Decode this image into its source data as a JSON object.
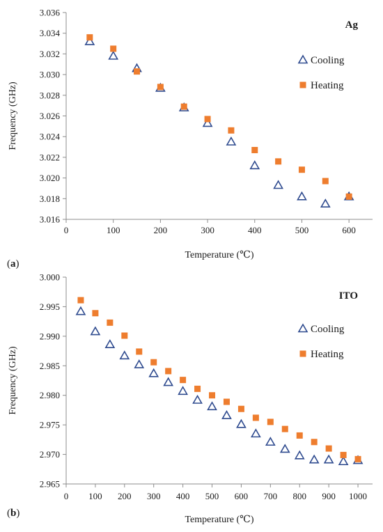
{
  "colors": {
    "cooling": "#2f4b8f",
    "heating": "#ee7d2e",
    "axis": "#8c8c8c",
    "text": "#1a1a1a"
  },
  "chart_data": [
    {
      "type": "scatter",
      "panel_label": "a",
      "annotation": "Ag",
      "xlabel": "Temperature (℃)",
      "ylabel": "Frequency (GHz)",
      "xlim": [
        0,
        650
      ],
      "ylim": [
        3.016,
        3.036
      ],
      "xticks": [
        "0",
        "100",
        "200",
        "300",
        "400",
        "500",
        "600"
      ],
      "yticks": [
        "3.016",
        "3.018",
        "3.020",
        "3.022",
        "3.024",
        "3.026",
        "3.028",
        "3.030",
        "3.032",
        "3.034",
        "3.036"
      ],
      "grid": false,
      "legend_position": "right",
      "series": [
        {
          "name": "Cooling",
          "marker": "triangle-open",
          "x": [
            50,
            100,
            150,
            200,
            250,
            300,
            350,
            400,
            450,
            500,
            550,
            600
          ],
          "y": [
            3.0332,
            3.0318,
            3.0306,
            3.0287,
            3.0268,
            3.0253,
            3.0235,
            3.0212,
            3.0193,
            3.0182,
            3.0175,
            3.0182
          ]
        },
        {
          "name": "Heating",
          "marker": "square",
          "x": [
            50,
            100,
            150,
            200,
            250,
            300,
            350,
            400,
            450,
            500,
            550,
            600
          ],
          "y": [
            3.0336,
            3.0325,
            3.0303,
            3.0288,
            3.0269,
            3.0257,
            3.0246,
            3.0227,
            3.0216,
            3.0208,
            3.0197,
            3.0182
          ]
        }
      ]
    },
    {
      "type": "scatter",
      "panel_label": "b",
      "annotation": "ITO",
      "xlabel": "Temperature (℃)",
      "ylabel": "Frequency (GHz)",
      "xlim": [
        0,
        1050
      ],
      "ylim": [
        2.965,
        3.0
      ],
      "xticks": [
        "0",
        "100",
        "200",
        "300",
        "400",
        "500",
        "600",
        "700",
        "800",
        "900",
        "1000"
      ],
      "yticks": [
        "2.965",
        "2.970",
        "2.975",
        "2.980",
        "2.985",
        "2.990",
        "2.995",
        "3.000"
      ],
      "grid": false,
      "legend_position": "right",
      "series": [
        {
          "name": "Cooling",
          "marker": "triangle-open",
          "x": [
            50,
            100,
            150,
            200,
            250,
            300,
            350,
            400,
            450,
            500,
            550,
            600,
            650,
            700,
            750,
            800,
            850,
            900,
            950,
            1000
          ],
          "y": [
            2.9942,
            2.9908,
            2.9886,
            2.9867,
            2.9852,
            2.9837,
            2.9822,
            2.9807,
            2.9792,
            2.9781,
            2.9766,
            2.9751,
            2.9735,
            2.9721,
            2.9709,
            2.9698,
            2.9691,
            2.9691,
            2.9688,
            2.969
          ]
        },
        {
          "name": "Heating",
          "marker": "square",
          "x": [
            50,
            100,
            150,
            200,
            250,
            300,
            350,
            400,
            450,
            500,
            550,
            600,
            650,
            700,
            750,
            800,
            850,
            900,
            950,
            1000
          ],
          "y": [
            2.9961,
            2.9939,
            2.9923,
            2.9901,
            2.9874,
            2.9856,
            2.9841,
            2.9826,
            2.9811,
            2.98,
            2.9789,
            2.9777,
            2.9762,
            2.9755,
            2.9743,
            2.9732,
            2.9721,
            2.971,
            2.9699,
            2.9692
          ]
        }
      ]
    }
  ]
}
